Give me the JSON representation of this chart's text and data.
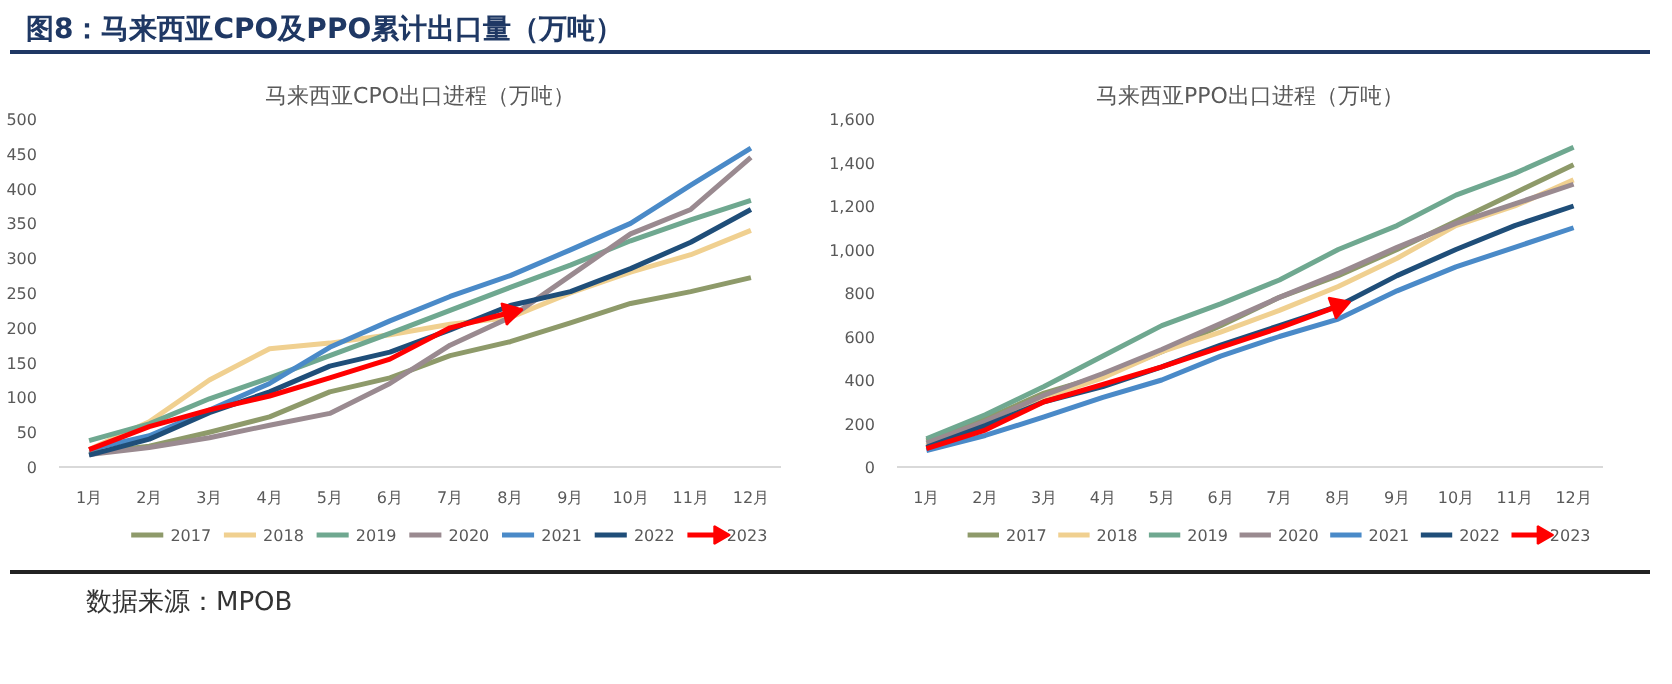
{
  "chart_data": [
    {
      "type": "line",
      "title": "马来西亚CPO出口进程（万吨）",
      "categories": [
        "1月",
        "2月",
        "3月",
        "4月",
        "5月",
        "6月",
        "7月",
        "8月",
        "9月",
        "10月",
        "11月",
        "12月"
      ],
      "ylim": [
        0,
        500
      ],
      "yticks": [
        0,
        50,
        100,
        150,
        200,
        250,
        300,
        350,
        400,
        450,
        500
      ],
      "grid": false,
      "legend": "bottom",
      "marker": "none",
      "annotations": [
        "图8：马来西亚CPO及PPO累计出口量（万吨）",
        "数据来源：MPOB"
      ],
      "series": [
        {
          "name": "2017",
          "color": "#8e9a6a",
          "values": [
            20,
            30,
            50,
            72,
            108,
            128,
            160,
            180,
            207,
            235,
            252,
            272
          ]
        },
        {
          "name": "2018",
          "color": "#f0d090",
          "values": [
            25,
            65,
            125,
            170,
            178,
            190,
            205,
            215,
            250,
            280,
            305,
            340
          ]
        },
        {
          "name": "2019",
          "color": "#6fa890",
          "values": [
            38,
            62,
            98,
            128,
            160,
            192,
            225,
            258,
            290,
            325,
            355,
            383
          ]
        },
        {
          "name": "2020",
          "color": "#9a8a90",
          "values": [
            18,
            28,
            42,
            60,
            77,
            120,
            175,
            215,
            275,
            335,
            370,
            445
          ]
        },
        {
          "name": "2021",
          "color": "#4a8ac8",
          "values": [
            25,
            45,
            82,
            120,
            172,
            210,
            245,
            275,
            312,
            350,
            405,
            458
          ]
        },
        {
          "name": "2022",
          "color": "#1f4e79",
          "values": [
            17,
            40,
            78,
            108,
            145,
            165,
            197,
            232,
            252,
            285,
            323,
            370
          ]
        },
        {
          "name": "2023",
          "color": "#ff0000",
          "values": [
            25,
            58,
            82,
            102,
            128,
            155,
            200,
            222,
            null,
            null,
            null,
            null
          ]
        }
      ]
    },
    {
      "type": "line",
      "title": "马来西亚PPO出口进程（万吨）",
      "categories": [
        "1月",
        "2月",
        "3月",
        "4月",
        "5月",
        "6月",
        "7月",
        "8月",
        "9月",
        "10月",
        "11月",
        "12月"
      ],
      "ylim": [
        0,
        1600
      ],
      "yticks": [
        0,
        {
          "value": 200,
          "label": "200"
        },
        {
          "value": 400,
          "label": "400"
        },
        {
          "value": 600,
          "label": "600"
        },
        {
          "value": 800,
          "label": "800"
        },
        {
          "value": 1000,
          "label": "1,000"
        },
        {
          "value": 1200,
          "label": "1,200"
        },
        {
          "value": 1400,
          "label": "1,400"
        },
        {
          "value": 1600,
          "label": "1,600"
        }
      ],
      "grid": false,
      "legend": "bottom",
      "marker": "none",
      "series": [
        {
          "name": "2017",
          "color": "#8e9a6a",
          "values": [
            120,
            220,
            340,
            420,
            530,
            650,
            780,
            880,
            1000,
            1130,
            1260,
            1390
          ]
        },
        {
          "name": "2018",
          "color": "#f0d090",
          "values": [
            100,
            200,
            320,
            410,
            530,
            620,
            720,
            830,
            960,
            1110,
            1200,
            1320
          ]
        },
        {
          "name": "2019",
          "color": "#6fa890",
          "values": [
            130,
            240,
            370,
            510,
            650,
            750,
            860,
            1000,
            1110,
            1250,
            1350,
            1470
          ]
        },
        {
          "name": "2020",
          "color": "#9a8a90",
          "values": [
            110,
            210,
            330,
            430,
            540,
            660,
            780,
            890,
            1010,
            1120,
            1210,
            1300
          ]
        },
        {
          "name": "2021",
          "color": "#4a8ac8",
          "values": [
            75,
            145,
            230,
            320,
            400,
            510,
            600,
            680,
            810,
            920,
            1010,
            1100
          ]
        },
        {
          "name": "2022",
          "color": "#1f4e79",
          "values": [
            90,
            190,
            300,
            370,
            460,
            560,
            650,
            740,
            880,
            1000,
            1110,
            1200
          ]
        },
        {
          "name": "2023",
          "color": "#ff0000",
          "values": [
            85,
            170,
            300,
            380,
            460,
            550,
            640,
            740,
            null,
            null,
            null,
            null
          ]
        }
      ]
    }
  ]
}
